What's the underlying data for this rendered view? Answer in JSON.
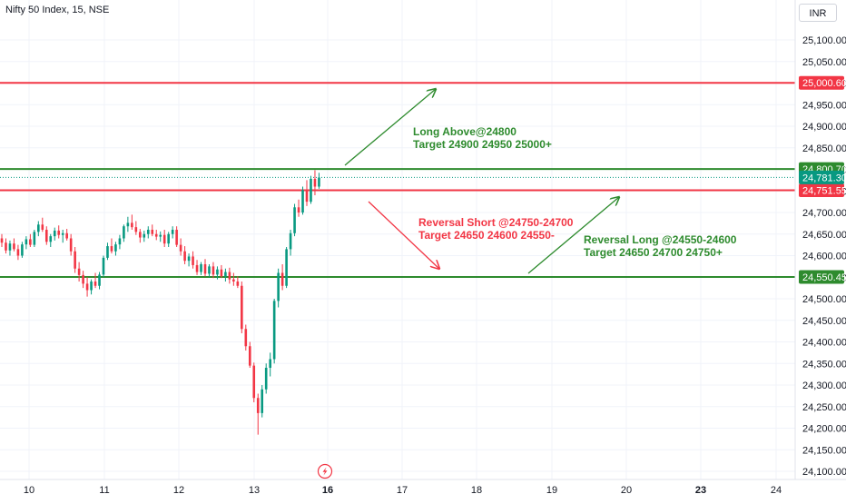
{
  "header": {
    "symbol_title": "Nifty 50 Index, 15, NSE",
    "currency": "INR"
  },
  "colors": {
    "up": "#089981",
    "down": "#f23645",
    "resistance_line": "#f23645",
    "support_line": "#2e8b2e",
    "annotation_green": "#2e8b2e",
    "annotation_red": "#f23645",
    "current_price": "#089981",
    "grid": "#f0f3fa",
    "axis_text": "#131722"
  },
  "chart_data": {
    "type": "candlestick",
    "y_axis": {
      "min": 24080,
      "max": 25140,
      "ticks": [
        25100,
        25050,
        25000,
        24950,
        24900,
        24850,
        24800,
        24750,
        24700,
        24650,
        24600,
        24550,
        24500,
        24450,
        24400,
        24350,
        24300,
        24250,
        24200,
        24150,
        24100
      ],
      "tick_labels": [
        "25,100.00",
        "25,050.00",
        "25,000.00",
        "24,950.00",
        "24,900.00",
        "24,850.00",
        "24,800.00",
        "24,750.00",
        "24,700.00",
        "24,650.00",
        "24,600.00",
        "24,550.00",
        "24,500.00",
        "24,450.00",
        "24,400.00",
        "24,350.00",
        "24,300.00",
        "24,250.00",
        "24,200.00",
        "24,150.00",
        "24,100.00"
      ]
    },
    "x_axis": {
      "labels": [
        "10",
        "11",
        "12",
        "13",
        "16",
        "17",
        "18",
        "19",
        "20",
        "23",
        "24"
      ],
      "bold": [
        "16",
        "23"
      ]
    },
    "horizontal_levels": [
      {
        "name": "resistance",
        "price": 25000.6,
        "label": "25,000.60",
        "color": "#f23645"
      },
      {
        "name": "long-above",
        "price": 24800.7,
        "label": "24,800.70",
        "color": "#2e8b2e"
      },
      {
        "name": "reversal-short",
        "price": 24751.55,
        "label": "24,751.55",
        "color": "#f23645"
      },
      {
        "name": "reversal-long",
        "price": 24550.45,
        "label": "24,550.45",
        "color": "#2e8b2e"
      }
    ],
    "current_price": {
      "price": 24781.3,
      "label": "24,781.30"
    },
    "annotations": [
      {
        "line1": "Long Above@24800",
        "line2": "Target 24900 24950 25000+",
        "color": "#2e8b2e"
      },
      {
        "line1": "Reversal Short @24750-24700",
        "line2": "Target 24650 24600 24550-",
        "color": "#f23645"
      },
      {
        "line1": "Reversal Long @24550-24600",
        "line2": "Target 24650 24700 24750+",
        "color": "#2e8b2e"
      }
    ],
    "grid": true,
    "candles": [
      [
        24640,
        24650,
        24620,
        24630
      ],
      [
        24630,
        24640,
        24605,
        24612
      ],
      [
        24612,
        24635,
        24600,
        24628
      ],
      [
        24628,
        24640,
        24610,
        24615
      ],
      [
        24615,
        24625,
        24590,
        24600
      ],
      [
        24600,
        24632,
        24595,
        24626
      ],
      [
        24626,
        24645,
        24615,
        24638
      ],
      [
        24638,
        24650,
        24620,
        24625
      ],
      [
        24625,
        24660,
        24620,
        24655
      ],
      [
        24655,
        24680,
        24645,
        24672
      ],
      [
        24672,
        24688,
        24655,
        24660
      ],
      [
        24660,
        24668,
        24625,
        24632
      ],
      [
        24632,
        24650,
        24620,
        24645
      ],
      [
        24645,
        24665,
        24635,
        24658
      ],
      [
        24658,
        24670,
        24640,
        24648
      ],
      [
        24648,
        24660,
        24630,
        24652
      ],
      [
        24652,
        24662,
        24635,
        24640
      ],
      [
        24640,
        24650,
        24600,
        24610
      ],
      [
        24610,
        24620,
        24560,
        24570
      ],
      [
        24570,
        24585,
        24540,
        24555
      ],
      [
        24555,
        24565,
        24525,
        24535
      ],
      [
        24535,
        24550,
        24505,
        24520
      ],
      [
        24520,
        24545,
        24510,
        24540
      ],
      [
        24540,
        24560,
        24525,
        24530
      ],
      [
        24530,
        24562,
        24522,
        24556
      ],
      [
        24556,
        24600,
        24550,
        24595
      ],
      [
        24595,
        24630,
        24590,
        24622
      ],
      [
        24622,
        24640,
        24605,
        24610
      ],
      [
        24610,
        24632,
        24600,
        24626
      ],
      [
        24626,
        24648,
        24615,
        24640
      ],
      [
        24640,
        24672,
        24632,
        24668
      ],
      [
        24668,
        24690,
        24655,
        24676
      ],
      [
        24676,
        24695,
        24660,
        24666
      ],
      [
        24666,
        24680,
        24648,
        24655
      ],
      [
        24655,
        24662,
        24630,
        24642
      ],
      [
        24642,
        24658,
        24632,
        24650
      ],
      [
        24650,
        24668,
        24640,
        24660
      ],
      [
        24660,
        24672,
        24645,
        24650
      ],
      [
        24650,
        24660,
        24636,
        24644
      ],
      [
        24644,
        24656,
        24632,
        24648
      ],
      [
        24648,
        24660,
        24620,
        24628
      ],
      [
        24628,
        24655,
        24620,
        24650
      ],
      [
        24650,
        24668,
        24640,
        24660
      ],
      [
        24660,
        24668,
        24620,
        24625
      ],
      [
        24625,
        24640,
        24600,
        24610
      ],
      [
        24610,
        24622,
        24580,
        24588
      ],
      [
        24588,
        24605,
        24575,
        24598
      ],
      [
        24598,
        24610,
        24570,
        24578
      ],
      [
        24578,
        24590,
        24555,
        24562
      ],
      [
        24562,
        24585,
        24555,
        24580
      ],
      [
        24580,
        24592,
        24552,
        24558
      ],
      [
        24558,
        24580,
        24550,
        24575
      ],
      [
        24575,
        24585,
        24548,
        24556
      ],
      [
        24556,
        24575,
        24545,
        24568
      ],
      [
        24568,
        24578,
        24548,
        24552
      ],
      [
        24552,
        24570,
        24540,
        24562
      ],
      [
        24562,
        24572,
        24535,
        24545
      ],
      [
        24545,
        24560,
        24530,
        24540
      ],
      [
        24540,
        24552,
        24525,
        24530
      ],
      [
        24530,
        24540,
        24420,
        24430
      ],
      [
        24430,
        24440,
        24380,
        24390
      ],
      [
        24390,
        24400,
        24340,
        24345
      ],
      [
        24345,
        24352,
        24260,
        24270
      ],
      [
        24270,
        24280,
        24185,
        24235
      ],
      [
        24235,
        24300,
        24225,
        24290
      ],
      [
        24290,
        24350,
        24280,
        24340
      ],
      [
        24340,
        24375,
        24320,
        24360
      ],
      [
        24360,
        24500,
        24350,
        24495
      ],
      [
        24495,
        24570,
        24480,
        24560
      ],
      [
        24560,
        24580,
        24520,
        24530
      ],
      [
        24530,
        24620,
        24525,
        24615
      ],
      [
        24615,
        24660,
        24600,
        24652
      ],
      [
        24652,
        24720,
        24645,
        24712
      ],
      [
        24712,
        24730,
        24690,
        24700
      ],
      [
        24700,
        24760,
        24695,
        24752
      ],
      [
        24752,
        24775,
        24715,
        24725
      ],
      [
        24725,
        24785,
        24720,
        24778
      ],
      [
        24778,
        24798,
        24740,
        24760
      ],
      [
        24760,
        24792,
        24755,
        24781
      ]
    ]
  }
}
